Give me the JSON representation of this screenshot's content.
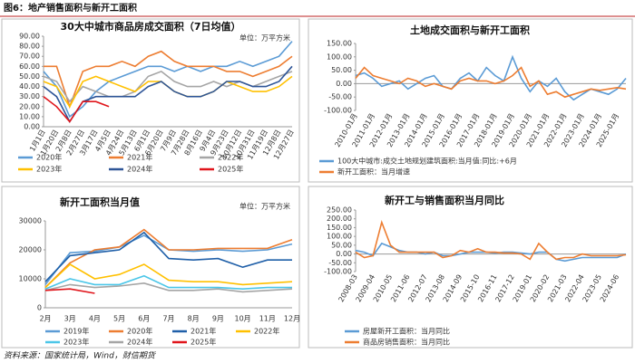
{
  "header": {
    "title": "图6：地产销售面积与新开工面积"
  },
  "footer": "资料来源：国家统计局，Wind，财信期货",
  "chart_data": [
    {
      "type": "line",
      "title": "30大中城市商品房成交面积（7日均值）",
      "unit": "单位：万平方米",
      "categories": [
        "1月1日",
        "1月20日",
        "2月8日",
        "2月27日",
        "3月17日",
        "4月5日",
        "4月24日",
        "5月13日",
        "6月1日",
        "6月20日",
        "7月9日",
        "7月28日",
        "8月16日",
        "9月4日",
        "9月23日",
        "10月12日",
        "10月31日",
        "11月19日",
        "12月8日",
        "12月27日"
      ],
      "ylim": [
        0,
        90
      ],
      "yticks": [
        {
          "value": 0,
          "label": "0.00"
        },
        {
          "value": 10,
          "label": "10.00"
        },
        {
          "value": 20,
          "label": "20.00"
        },
        {
          "value": 30,
          "label": "30.00"
        },
        {
          "value": 40,
          "label": "40.00"
        },
        {
          "value": 50,
          "label": "50.00"
        },
        {
          "value": 60,
          "label": "60.00"
        },
        {
          "value": 70,
          "label": "70.00"
        },
        {
          "value": 80,
          "label": "80.00"
        },
        {
          "value": 90,
          "label": "90.00"
        }
      ],
      "grid": false,
      "series": [
        {
          "name": "2020年",
          "color": "#5b9bd5",
          "values": [
            55,
            40,
            10,
            20,
            35,
            45,
            50,
            55,
            60,
            60,
            55,
            60,
            55,
            60,
            60,
            65,
            60,
            65,
            70,
            85
          ]
        },
        {
          "name": "2021年",
          "color": "#ed7d31",
          "values": [
            60,
            60,
            20,
            55,
            60,
            60,
            65,
            60,
            70,
            75,
            65,
            60,
            60,
            60,
            55,
            55,
            50,
            55,
            60,
            70
          ]
        },
        {
          "name": "2022年",
          "color": "#a5a5a5",
          "values": [
            50,
            45,
            25,
            40,
            35,
            30,
            30,
            35,
            50,
            55,
            45,
            40,
            40,
            45,
            40,
            45,
            40,
            45,
            50,
            55
          ]
        },
        {
          "name": "2023年",
          "color": "#ffc000",
          "values": [
            45,
            40,
            20,
            45,
            50,
            45,
            40,
            35,
            45,
            45,
            35,
            30,
            30,
            35,
            45,
            40,
            35,
            35,
            40,
            50
          ]
        },
        {
          "name": "2024年",
          "color": "#2e5597",
          "values": [
            40,
            30,
            5,
            25,
            30,
            30,
            30,
            30,
            40,
            45,
            35,
            30,
            30,
            35,
            45,
            45,
            40,
            40,
            45,
            60
          ]
        },
        {
          "name": "2025年",
          "color": "#e0151b",
          "values": [
            30,
            20,
            5,
            25,
            25,
            20,
            null,
            null,
            null,
            null,
            null,
            null,
            null,
            null,
            null,
            null,
            null,
            null,
            null,
            null
          ]
        }
      ]
    },
    {
      "type": "line",
      "title": "土地成交面积与新开工面积",
      "categories": [
        "2010-01月",
        null,
        "2011-01月",
        null,
        "2012-01月",
        null,
        "2013-01月",
        null,
        "2014-01月",
        null,
        "2015-01月",
        null,
        "2016-01月",
        null,
        "2017-01月",
        null,
        "2018-01月",
        null,
        "2019-01月",
        null,
        "2020-01月",
        null,
        "2021-01月",
        null,
        "2022-01月",
        null,
        "2023-01月",
        null,
        "2024-01月",
        null,
        "2025-01月",
        null
      ],
      "ylim": [
        -100,
        150
      ],
      "yticks": [
        {
          "value": -100,
          "label": "-100.00"
        },
        {
          "value": -50,
          "label": "-50.00"
        },
        {
          "value": 0,
          "label": "0.00"
        },
        {
          "value": 50,
          "label": "50.00"
        },
        {
          "value": 100,
          "label": "100.00"
        },
        {
          "value": 150,
          "label": "150.00"
        }
      ],
      "grid": false,
      "series": [
        {
          "name": "100大中城市:成交土地规划建筑面积:当月值:同比:+6月",
          "color": "#5b9bd5",
          "values": [
            30,
            40,
            20,
            -10,
            0,
            10,
            -20,
            0,
            20,
            30,
            -10,
            -20,
            20,
            40,
            10,
            60,
            30,
            10,
            100,
            20,
            -30,
            10,
            -10,
            20,
            -30,
            -60,
            -40,
            -20,
            -30,
            -40,
            -20,
            20
          ]
        },
        {
          "name": "新开工面积：当月增速",
          "color": "#ed7d31",
          "values": [
            20,
            60,
            30,
            20,
            10,
            0,
            20,
            10,
            -10,
            0,
            -10,
            -20,
            10,
            20,
            10,
            10,
            0,
            10,
            30,
            60,
            -10,
            10,
            -40,
            -30,
            -50,
            -40,
            -30,
            -20,
            -25,
            -20,
            -15,
            -20
          ]
        }
      ]
    },
    {
      "type": "line",
      "title": "新开工面积当月值",
      "unit": "单位：万平方米",
      "categories": [
        "2月",
        "3月",
        "4月",
        "5月",
        "6月",
        "7月",
        "8月",
        "9月",
        "10月",
        "11月",
        "12月"
      ],
      "ylim": [
        0,
        30000
      ],
      "yticks": [
        0,
        10000,
        20000,
        30000
      ],
      "grid": false,
      "series": [
        {
          "name": "2019年",
          "color": "#5b9bd5",
          "values": [
            8000,
            19000,
            19500,
            21000,
            25000,
            20000,
            19500,
            20000,
            19500,
            20000,
            22000
          ]
        },
        {
          "name": "2020年",
          "color": "#ed7d31",
          "values": [
            7000,
            15500,
            20000,
            21000,
            27000,
            20000,
            20000,
            20500,
            20500,
            20500,
            23500
          ]
        },
        {
          "name": "2021年",
          "color": "#1f5fa8",
          "values": [
            9000,
            18000,
            19000,
            20000,
            26000,
            17000,
            16500,
            17000,
            14000,
            16500,
            16500
          ]
        },
        {
          "name": "2022年",
          "color": "#ffc000",
          "values": [
            7000,
            15000,
            10000,
            11500,
            15000,
            9500,
            9000,
            9000,
            8000,
            8500,
            9000
          ]
        },
        {
          "name": "2023年",
          "color": "#4bc6e8",
          "values": [
            6500,
            10000,
            8000,
            8000,
            11000,
            7000,
            7000,
            7000,
            6500,
            7000,
            7000
          ]
        },
        {
          "name": "2024年",
          "color": "#a5a5a5",
          "values": [
            6000,
            8000,
            7000,
            7500,
            8500,
            6000,
            6000,
            6500,
            5500,
            6000,
            6500
          ]
        },
        {
          "name": "2025年",
          "color": "#e0151b",
          "values": [
            6000,
            6500,
            5000,
            null,
            null,
            null,
            null,
            null,
            null,
            null,
            null
          ]
        }
      ]
    },
    {
      "type": "line",
      "title": "新开工与销售面积当月同比",
      "categories": [
        "2008-03",
        null,
        "2009-04",
        null,
        "2010-05",
        null,
        "2011-06",
        null,
        "2012-07",
        null,
        "2013-08",
        null,
        "2014-09",
        null,
        "2015-10",
        null,
        "2016-11",
        null,
        "2017-12",
        null,
        "2019-01",
        null,
        "2020-02",
        null,
        "2021-03",
        null,
        "2022-04",
        null,
        "2023-05",
        null,
        "2024-06",
        null
      ],
      "ylim": [
        -100,
        250
      ],
      "yticks": [
        {
          "value": -100,
          "label": "-100.00"
        },
        {
          "value": -50,
          "label": "-50.00"
        },
        {
          "value": 0,
          "label": "0.00"
        },
        {
          "value": 50,
          "label": "50.00"
        },
        {
          "value": 100,
          "label": "100.00"
        },
        {
          "value": 150,
          "label": "150.00"
        },
        {
          "value": 200,
          "label": "200.00"
        },
        {
          "value": 250,
          "label": "250.00"
        }
      ],
      "grid": false,
      "series": [
        {
          "name": "房屋新开工面积：当月同比",
          "color": "#5b9bd5",
          "values": [
            20,
            10,
            -10,
            60,
            40,
            20,
            10,
            10,
            0,
            10,
            -10,
            -10,
            0,
            10,
            10,
            10,
            5,
            10,
            10,
            5,
            0,
            10,
            10,
            -30,
            -40,
            -30,
            -20,
            -20,
            -20,
            -20,
            -20,
            0
          ]
        },
        {
          "name": "商品房销售面积：当月同比",
          "color": "#ed7d31",
          "values": [
            10,
            -20,
            -10,
            180,
            50,
            10,
            10,
            10,
            10,
            10,
            -20,
            -10,
            20,
            10,
            30,
            10,
            10,
            5,
            5,
            0,
            -30,
            60,
            10,
            -30,
            -20,
            -20,
            0,
            -10,
            -10,
            -10,
            -10,
            -5
          ]
        }
      ]
    }
  ]
}
